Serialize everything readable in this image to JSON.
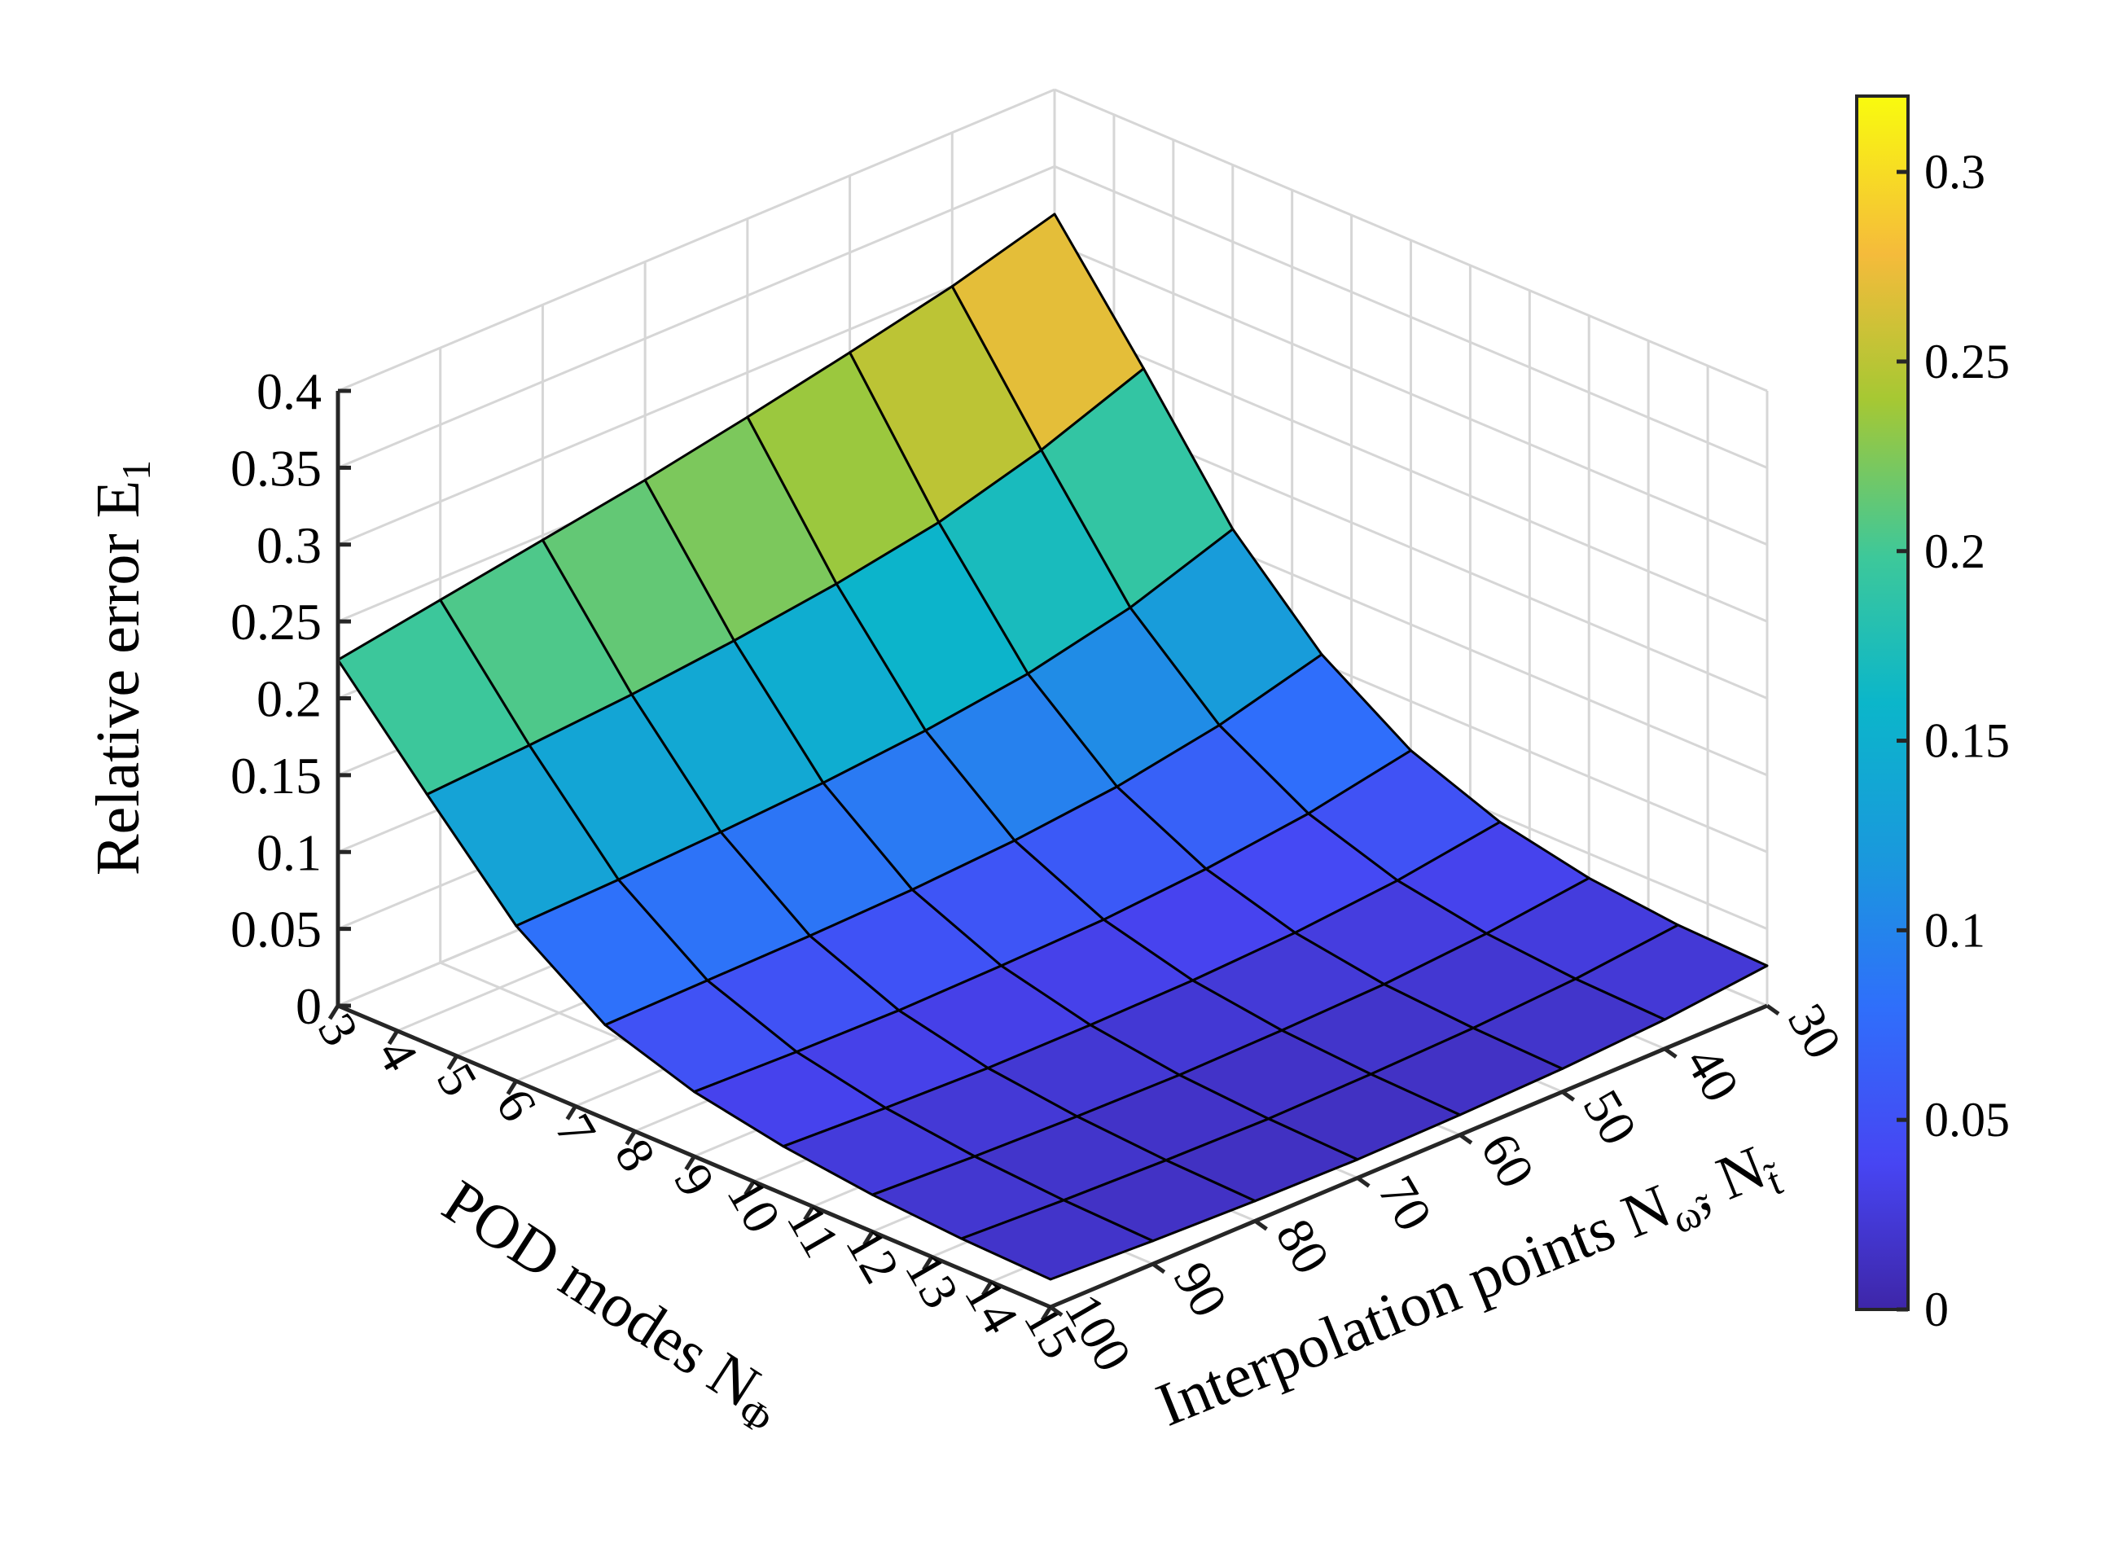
{
  "chart_data": {
    "type": "surface",
    "x": {
      "label": "POD modes N",
      "label_sub": "Φ",
      "values": [
        3,
        4,
        5,
        6,
        7,
        8,
        9,
        10,
        11,
        12,
        13,
        14,
        15
      ]
    },
    "y": {
      "label": "Interpolation points N",
      "label_sub1": "ω̃",
      "label_sep": ", N",
      "label_sub2": "t̃",
      "values": [
        30,
        40,
        50,
        60,
        70,
        80,
        90,
        100
      ]
    },
    "z": {
      "label": "Relative error E",
      "label_sub": "1",
      "lim": [
        0,
        0.4
      ],
      "ticks": [
        0,
        0.05,
        0.1,
        0.15,
        0.2,
        0.25,
        0.3,
        0.35,
        0.4
      ],
      "tick_labels": [
        "0",
        "0.05",
        "0.1",
        "0.15",
        "0.2",
        "0.25",
        "0.3",
        "0.35",
        "0.4"
      ]
    },
    "surface_grid": {
      "pod_modes": [
        3,
        4.5,
        6,
        7.5,
        9,
        10.5,
        12,
        13.5,
        15
      ],
      "interp_points": [
        30,
        40,
        50,
        60,
        70,
        80,
        90,
        100
      ],
      "z_rows": [
        [
          0.319,
          0.3,
          0.285,
          0.271,
          0.258,
          0.247,
          0.236,
          0.225
        ],
        [
          0.243,
          0.218,
          0.199,
          0.187,
          0.178,
          0.171,
          0.166,
          0.162
        ],
        [
          0.163,
          0.14,
          0.125,
          0.116,
          0.11,
          0.106,
          0.103,
          0.101
        ],
        [
          0.106,
          0.088,
          0.076,
          0.069,
          0.065,
          0.063,
          0.062,
          0.061
        ],
        [
          0.068,
          0.055,
          0.047,
          0.042,
          0.04,
          0.039,
          0.04,
          0.042
        ],
        [
          0.046,
          0.036,
          0.03,
          0.027,
          0.026,
          0.026,
          0.028,
          0.031
        ],
        [
          0.034,
          0.026,
          0.021,
          0.019,
          0.018,
          0.019,
          0.021,
          0.024
        ],
        [
          0.028,
          0.021,
          0.017,
          0.015,
          0.014,
          0.015,
          0.017,
          0.02
        ],
        [
          0.026,
          0.019,
          0.015,
          0.013,
          0.012,
          0.013,
          0.015,
          0.018
        ]
      ]
    },
    "colorbar": {
      "lim": [
        0,
        0.32
      ],
      "ticks": [
        0,
        0.05,
        0.1,
        0.15,
        0.2,
        0.25,
        0.3
      ],
      "tick_labels": [
        "0",
        "0.05",
        "0.1",
        "0.15",
        "0.2",
        "0.25",
        "0.3"
      ],
      "colormap": "parula"
    },
    "grid": true
  }
}
